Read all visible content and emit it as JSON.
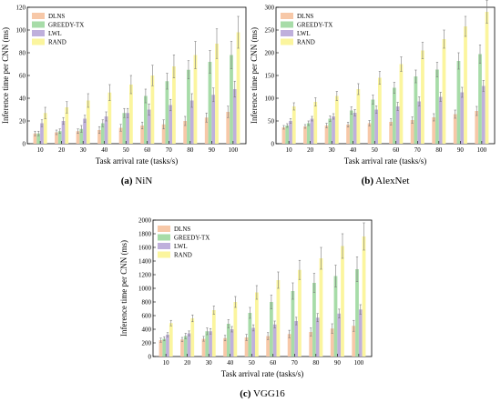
{
  "colors": {
    "DLNS": "#f7c8a8",
    "GREEDY-TX": "#a7dca8",
    "LWL": "#bfb0dc",
    "RAND": "#fbf59e",
    "error": "#7a7a7a"
  },
  "chart_data": [
    {
      "type": "bar",
      "caption_letter": "(a)",
      "caption_name": "NiN",
      "xlabel": "Task arrival rate (tasks/s)",
      "ylabel": "Inference time per CNN (ms)",
      "ylim": [
        0,
        120
      ],
      "yticks": [
        0,
        20,
        40,
        60,
        80,
        100,
        120
      ],
      "categories": [
        "10",
        "20",
        "30",
        "40",
        "50",
        "60",
        "70",
        "80",
        "90",
        "100"
      ],
      "legend_position": "top-left",
      "series": [
        {
          "name": "DLNS",
          "color": "#f7c8a8",
          "values": [
            9,
            10,
            11,
            12,
            14,
            16,
            17,
            20,
            23,
            28
          ],
          "errors": [
            2,
            2,
            2,
            3,
            3,
            3,
            4,
            4,
            4,
            5
          ]
        },
        {
          "name": "GREEDY-TX",
          "color": "#a7dca8",
          "values": [
            9,
            11,
            13,
            18,
            27,
            42,
            55,
            65,
            72,
            78
          ],
          "errors": [
            2,
            2,
            3,
            3,
            4,
            6,
            7,
            8,
            10,
            12
          ]
        },
        {
          "name": "LWL",
          "color": "#bfb0dc",
          "values": [
            18,
            20,
            22,
            24,
            27,
            30,
            34,
            38,
            43,
            48
          ],
          "errors": [
            3,
            3,
            3,
            4,
            4,
            5,
            5,
            6,
            6,
            7
          ]
        },
        {
          "name": "RAND",
          "color": "#fbf59e",
          "values": [
            27,
            32,
            38,
            45,
            52,
            60,
            68,
            78,
            88,
            98
          ],
          "errors": [
            5,
            5,
            6,
            7,
            8,
            9,
            10,
            12,
            13,
            14
          ]
        }
      ]
    },
    {
      "type": "bar",
      "caption_letter": "(b)",
      "caption_name": "AlexNet",
      "xlabel": "Task arrival rate (tasks/s)",
      "ylabel": "Inference time per CNN (ms)",
      "ylim": [
        0,
        300
      ],
      "yticks": [
        0,
        50,
        100,
        150,
        200,
        250,
        300
      ],
      "categories": [
        "10",
        "20",
        "30",
        "40",
        "50",
        "60",
        "70",
        "80",
        "90",
        "100"
      ],
      "legend_position": "top-left",
      "series": [
        {
          "name": "DLNS",
          "color": "#f7c8a8",
          "values": [
            36,
            38,
            40,
            42,
            45,
            48,
            52,
            58,
            65,
            72
          ],
          "errors": [
            4,
            4,
            5,
            5,
            6,
            7,
            7,
            8,
            9,
            10
          ]
        },
        {
          "name": "GREEDY-TX",
          "color": "#a7dca8",
          "values": [
            40,
            45,
            55,
            73,
            97,
            123,
            148,
            163,
            182,
            197
          ],
          "errors": [
            4,
            5,
            6,
            8,
            10,
            12,
            14,
            16,
            18,
            20
          ]
        },
        {
          "name": "LWL",
          "color": "#bfb0dc",
          "values": [
            50,
            55,
            60,
            68,
            75,
            82,
            93,
            103,
            113,
            127
          ],
          "errors": [
            5,
            5,
            6,
            7,
            8,
            9,
            10,
            10,
            11,
            12
          ]
        },
        {
          "name": "RAND",
          "color": "#fbf59e",
          "values": [
            82,
            92,
            105,
            120,
            145,
            175,
            205,
            230,
            258,
            290
          ],
          "errors": [
            8,
            9,
            10,
            12,
            14,
            16,
            18,
            20,
            22,
            25
          ]
        }
      ]
    },
    {
      "type": "bar",
      "caption_letter": "(c)",
      "caption_name": "VGG16",
      "xlabel": "Task arrival rate (tasks/s)",
      "ylabel": "Inference time per CNN (ms)",
      "ylim": [
        0,
        2000
      ],
      "yticks": [
        0,
        200,
        400,
        600,
        800,
        1000,
        1200,
        1400,
        1600,
        1800,
        2000
      ],
      "categories": [
        "10",
        "20",
        "30",
        "40",
        "50",
        "60",
        "70",
        "80",
        "90",
        "100"
      ],
      "legend_position": "top-left",
      "series": [
        {
          "name": "DLNS",
          "color": "#f7c8a8",
          "values": [
            240,
            250,
            260,
            270,
            280,
            300,
            330,
            360,
            410,
            450
          ],
          "errors": [
            30,
            30,
            35,
            40,
            45,
            50,
            55,
            60,
            70,
            80
          ]
        },
        {
          "name": "GREEDY-TX",
          "color": "#a7dca8",
          "values": [
            260,
            300,
            370,
            480,
            640,
            800,
            960,
            1080,
            1180,
            1280
          ],
          "errors": [
            30,
            40,
            50,
            60,
            80,
            100,
            120,
            140,
            160,
            180
          ]
        },
        {
          "name": "LWL",
          "color": "#bfb0dc",
          "values": [
            320,
            340,
            370,
            400,
            420,
            470,
            520,
            570,
            630,
            690
          ],
          "errors": [
            30,
            35,
            40,
            40,
            45,
            50,
            55,
            60,
            65,
            70
          ]
        },
        {
          "name": "RAND",
          "color": "#fbf59e",
          "values": [
            490,
            560,
            680,
            800,
            940,
            1120,
            1270,
            1440,
            1620,
            1760
          ],
          "errors": [
            40,
            50,
            60,
            80,
            100,
            120,
            140,
            160,
            180,
            200
          ]
        }
      ]
    }
  ]
}
